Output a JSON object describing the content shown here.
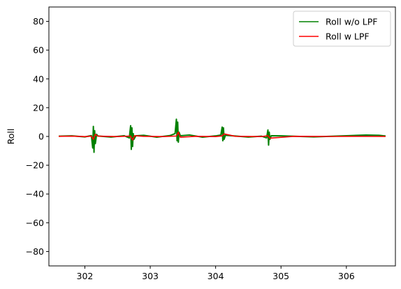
{
  "chart_data": {
    "type": "line",
    "title": "",
    "xlabel": "",
    "ylabel": "Roll",
    "xlim": [
      301.45,
      306.75
    ],
    "ylim": [
      -90,
      90
    ],
    "x_ticks": [
      302,
      303,
      304,
      305,
      306
    ],
    "y_ticks": [
      -80,
      -60,
      -40,
      -20,
      0,
      20,
      40,
      60,
      80
    ],
    "grid": false,
    "legend_position": "top-right",
    "series": [
      {
        "name": "Roll w/o LPF",
        "color": "#008000",
        "x": [
          301.6,
          301.8,
          302.0,
          302.1,
          302.12,
          302.13,
          302.14,
          302.15,
          302.16,
          302.18,
          302.2,
          302.4,
          302.6,
          302.68,
          302.7,
          302.71,
          302.72,
          302.73,
          302.74,
          302.75,
          302.78,
          302.9,
          303.1,
          303.3,
          303.38,
          303.4,
          303.41,
          303.42,
          303.43,
          303.44,
          303.46,
          303.6,
          303.8,
          304.0,
          304.08,
          304.1,
          304.11,
          304.12,
          304.13,
          304.15,
          304.3,
          304.5,
          304.7,
          304.78,
          304.8,
          304.81,
          304.82,
          304.83,
          304.85,
          305.0,
          305.5,
          306.0,
          306.3,
          306.5,
          306.6
        ],
        "y": [
          0.2,
          0.4,
          -0.3,
          0.6,
          -8,
          7,
          -11,
          4,
          -5,
          1.5,
          0.3,
          -0.4,
          0.5,
          -1,
          7.5,
          -9,
          6,
          -7,
          2,
          -2,
          0.5,
          0.8,
          -0.5,
          0.6,
          2,
          12,
          -3,
          10,
          -4,
          3,
          0.5,
          1,
          -0.5,
          0.4,
          1,
          6.5,
          -3,
          6,
          -2,
          0.8,
          0.3,
          -0.4,
          0.2,
          -1,
          4.5,
          -6,
          3,
          -2,
          0.5,
          0.4,
          -0.3,
          0.5,
          1,
          0.8,
          0.3
        ]
      },
      {
        "name": "Roll w LPF",
        "color": "#ff0000",
        "x": [
          301.6,
          301.8,
          302.0,
          302.1,
          302.13,
          302.16,
          302.2,
          302.5,
          302.7,
          302.73,
          302.76,
          302.9,
          303.2,
          303.4,
          303.43,
          303.46,
          303.7,
          304.0,
          304.1,
          304.13,
          304.3,
          304.7,
          304.8,
          304.83,
          305.2,
          305.8,
          306.2,
          306.6
        ],
        "y": [
          0.1,
          0.2,
          -0.1,
          0.2,
          -2,
          1.5,
          0.2,
          -0.1,
          0.3,
          -2.5,
          0.5,
          0.1,
          -0.1,
          0.3,
          3,
          -0.5,
          0.1,
          -0.1,
          0.4,
          1.8,
          0.1,
          -0.1,
          0.5,
          -1.2,
          0.1,
          0,
          0.1,
          0
        ]
      }
    ]
  }
}
